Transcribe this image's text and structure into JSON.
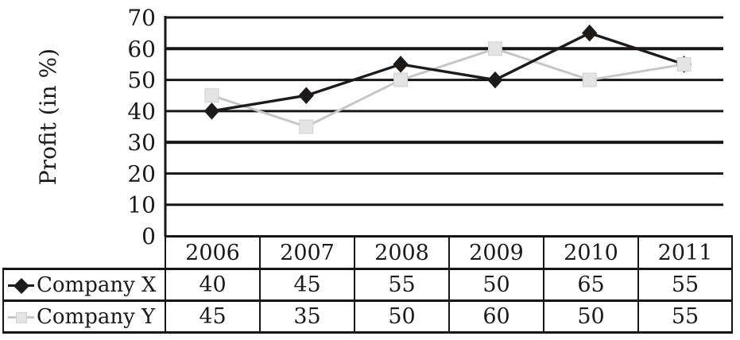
{
  "chart_data": {
    "type": "line",
    "title": "",
    "xlabel": "",
    "ylabel": "Profit (in %)",
    "categories": [
      "2006",
      "2007",
      "2008",
      "2009",
      "2010",
      "2011"
    ],
    "series": [
      {
        "name": "Company X",
        "values": [
          40,
          45,
          55,
          50,
          65,
          55
        ],
        "color": "#1c1b1a",
        "marker": "diamond",
        "marker_fill": "#1c1b1a",
        "marker_stroke": "#1c1b1a"
      },
      {
        "name": "Company Y",
        "values": [
          45,
          35,
          50,
          60,
          50,
          55
        ],
        "color": "#c6c6c6",
        "marker": "square",
        "marker_fill": "#e4e4e4",
        "marker_stroke": "#d0d0d0"
      }
    ],
    "y_ticks": [
      0,
      10,
      20,
      30,
      40,
      50,
      60,
      70
    ],
    "ylim": [
      0,
      70
    ],
    "grid": "horizontal",
    "gridline_color": "#161616",
    "axis_color": "#161616",
    "legend_position": "table-left",
    "background": "#ffffff"
  }
}
